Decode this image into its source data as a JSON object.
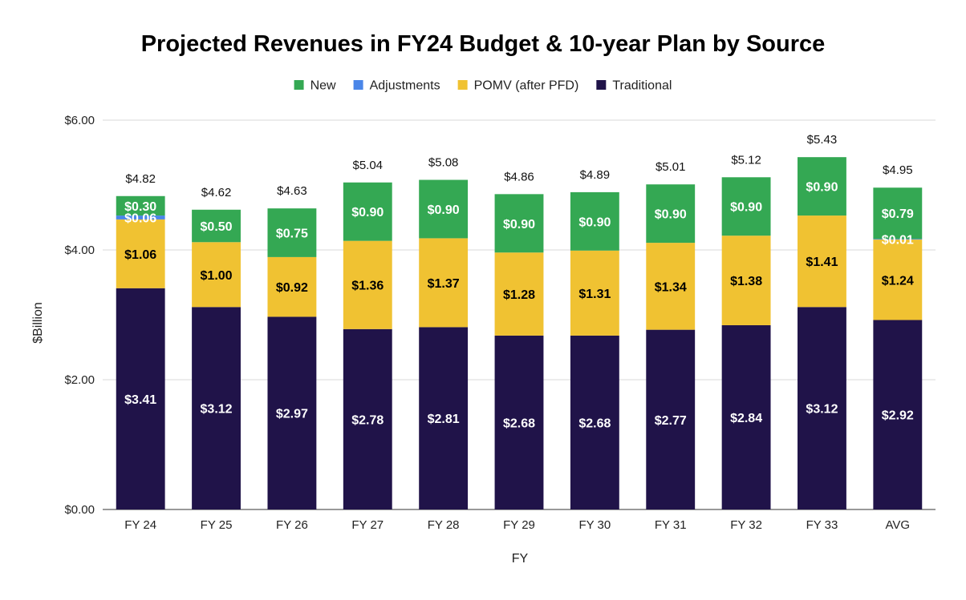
{
  "chart_data": {
    "type": "bar",
    "stacked": true,
    "title": "Projected Revenues in FY24 Budget & 10-year Plan by Source",
    "xlabel": "FY",
    "ylabel": "$Billion",
    "ylim": [
      0,
      6
    ],
    "yticks": [
      0,
      2,
      4,
      6
    ],
    "ytick_labels": [
      "$0.00",
      "$2.00",
      "$4.00",
      "$6.00"
    ],
    "grid": true,
    "legend_position": "top",
    "categories": [
      "FY 24",
      "FY 25",
      "FY 26",
      "FY 27",
      "FY 28",
      "FY 29",
      "FY 30",
      "FY 31",
      "FY 32",
      "FY 33",
      "AVG"
    ],
    "series": [
      {
        "name": "Traditional",
        "color": "#201349",
        "label_color": "#ffffff",
        "values": [
          3.41,
          3.12,
          2.97,
          2.78,
          2.81,
          2.68,
          2.68,
          2.77,
          2.84,
          3.12,
          2.92
        ],
        "labels": [
          "$3.41",
          "$3.12",
          "$2.97",
          "$2.78",
          "$2.81",
          "$2.68",
          "$2.68",
          "$2.77",
          "$2.84",
          "$3.12",
          "$2.92"
        ]
      },
      {
        "name": "POMV (after PFD)",
        "color": "#f0c232",
        "label_color": "#000000",
        "values": [
          1.06,
          1.0,
          0.92,
          1.36,
          1.37,
          1.28,
          1.31,
          1.34,
          1.38,
          1.41,
          1.24
        ],
        "labels": [
          "$1.06",
          "$1.00",
          "$0.92",
          "$1.36",
          "$1.37",
          "$1.28",
          "$1.31",
          "$1.34",
          "$1.38",
          "$1.41",
          "$1.24"
        ]
      },
      {
        "name": "Adjustments",
        "color": "#4a86e8",
        "label_color": "#ffffff",
        "values": [
          0.06,
          0,
          0,
          0,
          0,
          0,
          0,
          0,
          0,
          0,
          0.01
        ],
        "labels": [
          "$0.06",
          "",
          "",
          "",
          "",
          "",
          "",
          "",
          "",
          "",
          "$0.01"
        ]
      },
      {
        "name": "New",
        "color": "#34a853",
        "label_color": "#ffffff",
        "values": [
          0.3,
          0.5,
          0.75,
          0.9,
          0.9,
          0.9,
          0.9,
          0.9,
          0.9,
          0.9,
          0.79
        ],
        "labels": [
          "$0.30",
          "$0.50",
          "$0.75",
          "$0.90",
          "$0.90",
          "$0.90",
          "$0.90",
          "$0.90",
          "$0.90",
          "$0.90",
          "$0.79"
        ]
      }
    ],
    "legend_order": [
      "New",
      "Adjustments",
      "POMV (after PFD)",
      "Traditional"
    ],
    "totals": [
      4.82,
      4.62,
      4.63,
      5.04,
      5.08,
      4.86,
      4.89,
      5.01,
      5.12,
      5.43,
      4.95
    ],
    "total_labels": [
      "$4.82",
      "$4.62",
      "$4.63",
      "$5.04",
      "$5.08",
      "$4.86",
      "$4.89",
      "$5.01",
      "$5.12",
      "$5.43",
      "$4.95"
    ]
  }
}
